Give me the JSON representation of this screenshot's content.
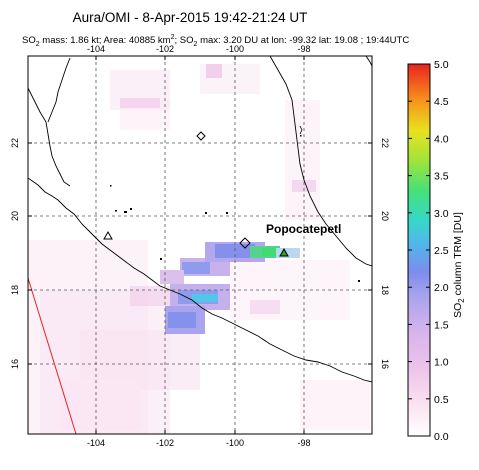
{
  "title": "Aura/OMI -  8-Apr-2015 19:42-21:24 UT",
  "subtitle": {
    "so2_prefix": "SO",
    "so2_sub": "2",
    "mass_text": " mass: 1.86 kt; Area: 40885 km",
    "area_sup": "2",
    "max_prefix": "; SO",
    "max_sub": "2",
    "max_text": " max: 3.20 DU at lon: -99.32 lat: 19.08 ; 19:44UTC"
  },
  "map": {
    "lon_range": [
      -106,
      -97
    ],
    "lat_range": [
      14,
      24
    ],
    "lon_ticks": [
      "-104",
      "-102",
      "-100",
      "-98"
    ],
    "lat_ticks": [
      "22",
      "20",
      "18",
      "16"
    ],
    "volcano_name": "Popocatepetl"
  },
  "colorbar": {
    "label_prefix": "SO",
    "label_sub": "2",
    "label_suffix": " column TRM [DU]",
    "ticks": [
      "0.0",
      "0.5",
      "1.0",
      "1.5",
      "2.0",
      "2.5",
      "3.0",
      "3.5",
      "4.0",
      "4.5",
      "5.0"
    ],
    "range": [
      0,
      5
    ]
  },
  "colors": {
    "coastline": "#000000",
    "grid": "#555555",
    "volcano_marker": "#2ca02c",
    "swath_edge": "#e8231f"
  }
}
